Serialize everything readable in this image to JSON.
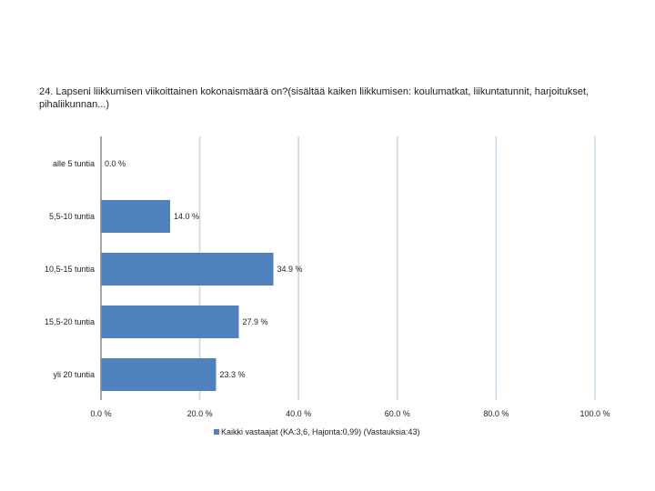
{
  "chart_data": {
    "type": "bar",
    "orientation": "horizontal",
    "title": "24. Lapseni liikkumisen viikoittainen kokonaismäärä on?(sisältää kaiken liikkumisen: koulumatkat, liikuntatunnit, harjoitukset, pihaliikunnan...)",
    "categories": [
      "alle 5 tuntia",
      "5,5-10 tuntia",
      "10,5-15 tuntia",
      "15,5-20 tuntia",
      "yli 20 tuntia"
    ],
    "series": [
      {
        "name": "Kaikki vastaajat (KA:3,6, Hajonta:0,99) (Vastauksia:43)",
        "values": [
          0.0,
          14.0,
          34.9,
          27.9,
          23.3
        ],
        "labels": [
          "0.0 %",
          "14.0 %",
          "34.9 %",
          "27.9 %",
          "23.3 %"
        ],
        "color": "#4f81bd"
      }
    ],
    "xlim": [
      0,
      100
    ],
    "xticks": [
      0,
      20,
      40,
      60,
      80,
      100
    ],
    "xtick_labels": [
      "0.0 %",
      "20.0 %",
      "40.0 %",
      "60.0 %",
      "80.0 %",
      "100.0 %"
    ],
    "grid": true,
    "grid_color": "#c6d9e8",
    "legend_position": "bottom"
  }
}
